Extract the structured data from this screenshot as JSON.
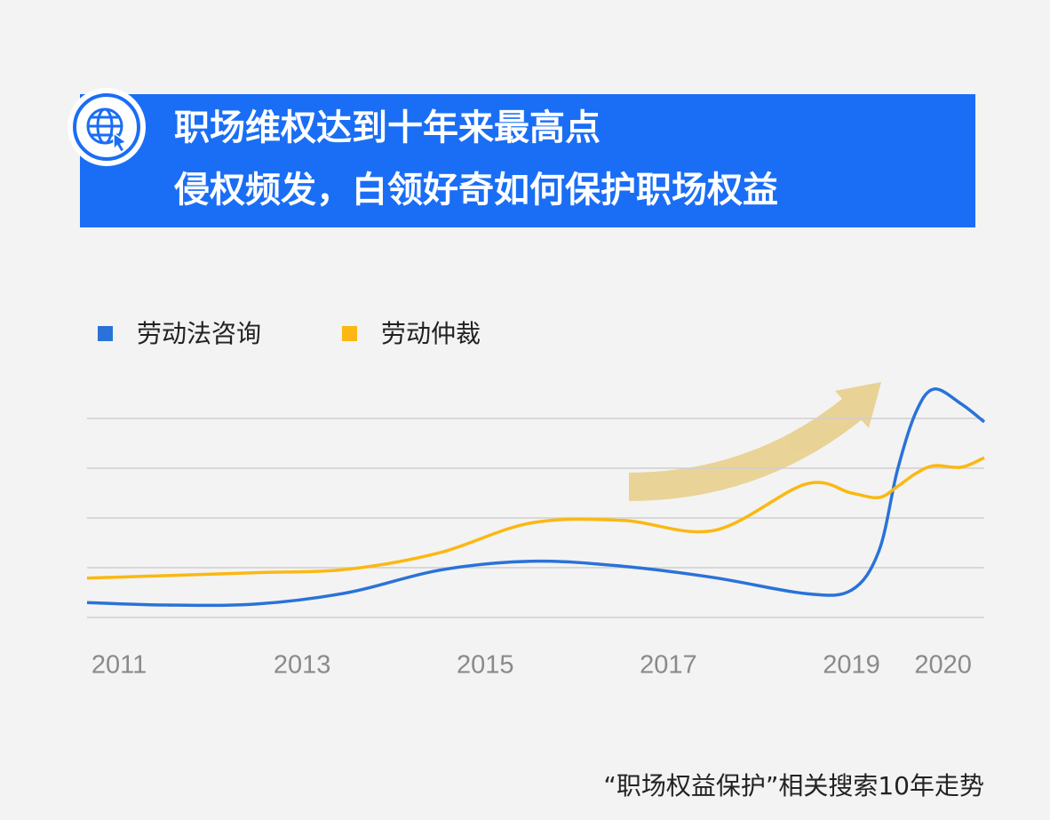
{
  "chart_data": {
    "type": "line",
    "title": [
      "职场维权达到十年来最高点",
      "侵权频发，白领好奇如何保护职场权益"
    ],
    "caption": "“职场权益保护”相关搜索10年走势",
    "x": [
      2010.65,
      2011.5,
      2012.5,
      2013.5,
      2014.5,
      2015.5,
      2016.5,
      2017.5,
      2018.5,
      2019,
      2019.3,
      2019.5,
      2019.7,
      2019.9,
      2020.2,
      2020.45
    ],
    "series": [
      {
        "name": "劳动法咨询",
        "color": "#2a72d8",
        "values": [
          0.3,
          0.25,
          0.27,
          0.5,
          0.95,
          1.13,
          1.03,
          0.8,
          0.48,
          0.55,
          1.34,
          2.95,
          4.11,
          4.59,
          4.29,
          3.93
        ]
      },
      {
        "name": "劳动仲裁",
        "color": "#fbb812",
        "values": [
          0.79,
          0.84,
          0.9,
          0.97,
          1.3,
          1.9,
          1.95,
          1.75,
          2.68,
          2.5,
          2.41,
          2.63,
          2.89,
          3.05,
          3.02,
          3.21
        ]
      }
    ],
    "xlim": [
      2010.65,
      2020.45
    ],
    "xticks": [
      2011,
      2013,
      2015,
      2017,
      2019,
      2020
    ],
    "ylim": [
      0,
      5
    ],
    "yticks": [
      0,
      1,
      2,
      3,
      4
    ],
    "grid": true
  }
}
